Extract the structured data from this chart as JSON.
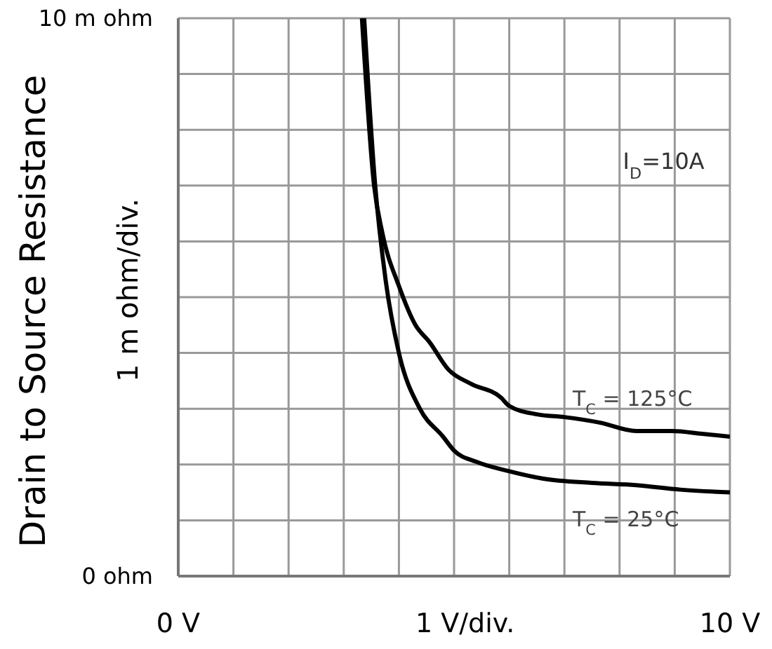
{
  "chart_data": {
    "type": "line",
    "ylabel": "Drain to Source Resistance",
    "xlabel": "1  V/div.",
    "annotations": [
      "1 m ohm/div.",
      "I$_{D}$=10A"
    ],
    "xlim": [
      0,
      10
    ],
    "ylim": [
      0,
      10
    ],
    "xticks": [
      {
        "value": 0,
        "label": "0  V"
      },
      {
        "value": 1,
        "label": null
      },
      {
        "value": 2,
        "label": null
      },
      {
        "value": 3,
        "label": null
      },
      {
        "value": 4,
        "label": null
      },
      {
        "value": 5,
        "label": null
      },
      {
        "value": 6,
        "label": null
      },
      {
        "value": 7,
        "label": null
      },
      {
        "value": 8,
        "label": null
      },
      {
        "value": 9,
        "label": null
      },
      {
        "value": 10,
        "label": "10  V"
      }
    ],
    "yticks": [
      {
        "value": 0,
        "label": "0  ohm"
      },
      {
        "value": 1,
        "label": null
      },
      {
        "value": 2,
        "label": null
      },
      {
        "value": 3,
        "label": null
      },
      {
        "value": 4,
        "label": null
      },
      {
        "value": 5,
        "label": null
      },
      {
        "value": 6,
        "label": null
      },
      {
        "value": 7,
        "label": null
      },
      {
        "value": 8,
        "label": null
      },
      {
        "value": 9,
        "label": null
      },
      {
        "value": 10,
        "label": "10 m ohm"
      }
    ],
    "grid": true,
    "marker": "none",
    "line_style": "solid",
    "series": [
      {
        "name": "T$_{C}$ = 125°C",
        "color": "#000000",
        "x": [
          3.33,
          3.55,
          3.7,
          4.0,
          4.3,
          4.55,
          4.9,
          5.3,
          5.85,
          6.0,
          6.5,
          7.0,
          7.65,
          8.3,
          8.95,
          9.5,
          10
        ],
        "values": [
          10,
          7.0,
          6.15,
          5.2,
          4.5,
          4.2,
          3.7,
          3.45,
          3.2,
          3.05,
          2.9,
          2.85,
          2.75,
          2.6,
          2.6,
          2.55,
          2.5
        ]
      },
      {
        "name": "T$_{C}$ = 25°C",
        "color": "#000000",
        "x": [
          3.37,
          3.57,
          3.76,
          4.0,
          4.38,
          4.8,
          5.0,
          5.4,
          6.0,
          6.6,
          7.5,
          8.3,
          9.1,
          10
        ],
        "values": [
          10,
          7.0,
          5.3,
          4.0,
          3.0,
          2.5,
          2.25,
          2.05,
          1.88,
          1.75,
          1.67,
          1.63,
          1.55,
          1.5
        ]
      }
    ]
  }
}
